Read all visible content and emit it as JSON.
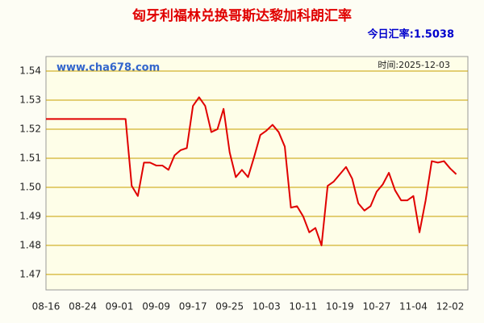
{
  "chart_data": {
    "type": "line",
    "title": "匈牙利福林兑换哥斯达黎加科朗汇率",
    "subtitle": "今日汇率:1.5038",
    "watermark": "www.cha678.com",
    "annotation": "时间:2025-12-03",
    "categories": [
      "08-16",
      null,
      null,
      null,
      null,
      null,
      "08-24",
      null,
      null,
      null,
      null,
      null,
      "09-01",
      null,
      null,
      null,
      null,
      null,
      "09-09",
      null,
      null,
      null,
      null,
      null,
      "09-17",
      null,
      null,
      null,
      null,
      null,
      "09-25",
      null,
      null,
      null,
      null,
      null,
      "10-03",
      null,
      null,
      null,
      null,
      null,
      "10-11",
      null,
      null,
      null,
      null,
      null,
      "10-19",
      null,
      null,
      null,
      null,
      null,
      "10-27",
      null,
      null,
      null,
      null,
      null,
      "11-04",
      null,
      null,
      null,
      null,
      null,
      "12-02",
      null
    ],
    "values": [
      1.5235,
      1.5235,
      1.5235,
      1.5235,
      1.5235,
      1.5235,
      1.5235,
      1.5235,
      1.5235,
      1.5235,
      1.5235,
      1.5235,
      1.5235,
      1.5235,
      1.5005,
      1.497,
      1.5085,
      1.5085,
      1.5075,
      1.5075,
      1.506,
      1.511,
      1.5128,
      1.5135,
      1.528,
      1.531,
      1.528,
      1.519,
      1.52,
      1.527,
      1.512,
      1.5035,
      1.506,
      1.5035,
      1.5105,
      1.518,
      1.5195,
      1.5215,
      1.519,
      1.514,
      1.493,
      1.4935,
      1.49,
      1.4845,
      1.486,
      1.48,
      1.5005,
      1.502,
      1.5045,
      1.507,
      1.503,
      1.4945,
      1.492,
      1.4935,
      1.4985,
      1.501,
      1.505,
      1.499,
      1.4955,
      1.4955,
      1.497,
      1.4845,
      1.4955,
      1.509,
      1.5085,
      1.509,
      1.5065,
      1.5045
    ],
    "color": "#e00000",
    "ylim": [
      1.4647,
      1.545
    ],
    "yticks": [
      1.47,
      1.48,
      1.49,
      {
        "value": 1.5,
        "label": "1.50"
      },
      1.51,
      1.52,
      1.53,
      1.54
    ],
    "grid": true
  }
}
